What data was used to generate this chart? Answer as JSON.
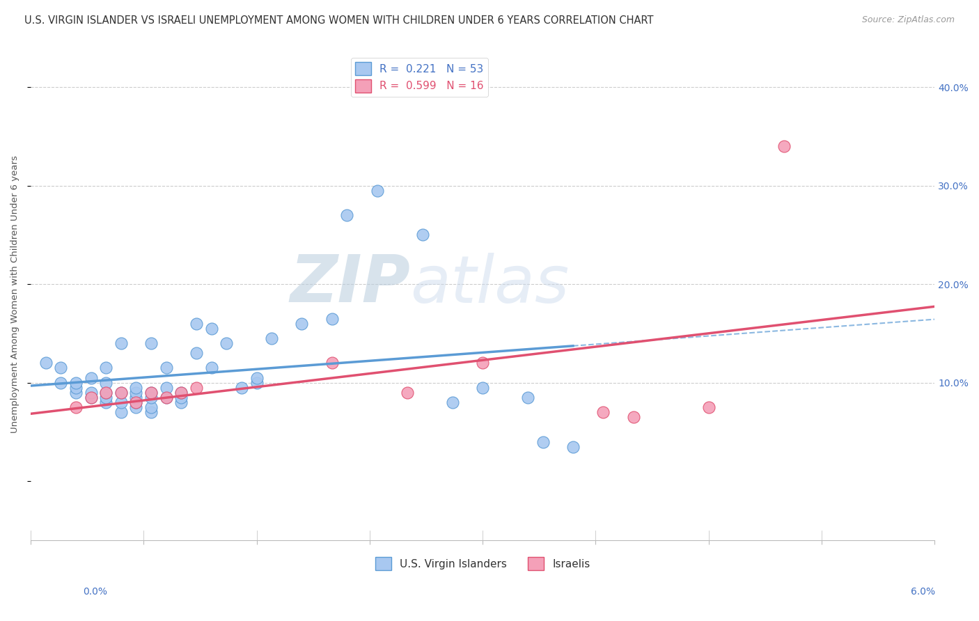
{
  "title": "U.S. VIRGIN ISLANDER VS ISRAELI UNEMPLOYMENT AMONG WOMEN WITH CHILDREN UNDER 6 YEARS CORRELATION CHART",
  "source": "Source: ZipAtlas.com",
  "ylabel": "Unemployment Among Women with Children Under 6 years",
  "y_tick_labels": [
    "10.0%",
    "20.0%",
    "30.0%",
    "40.0%"
  ],
  "y_tick_values": [
    0.1,
    0.2,
    0.3,
    0.4
  ],
  "x_range": [
    0.0,
    0.06
  ],
  "y_range": [
    -0.06,
    0.44
  ],
  "r_vi": 0.221,
  "n_vi": 53,
  "r_is": 0.599,
  "n_is": 16,
  "color_vi": "#A8C8F0",
  "color_vi_line": "#5B9BD5",
  "color_is": "#F4A0B8",
  "color_is_line": "#E05070",
  "color_blue_text": "#4472C4",
  "color_pink_text": "#E05070",
  "legend_label_vi": "U.S. Virgin Islanders",
  "legend_label_is": "Israelis",
  "background_color": "#FFFFFF",
  "grid_color": "#CCCCCC",
  "vi_x": [
    0.001,
    0.002,
    0.002,
    0.003,
    0.003,
    0.003,
    0.004,
    0.004,
    0.004,
    0.005,
    0.005,
    0.005,
    0.005,
    0.005,
    0.006,
    0.006,
    0.006,
    0.006,
    0.007,
    0.007,
    0.007,
    0.007,
    0.007,
    0.008,
    0.008,
    0.008,
    0.008,
    0.008,
    0.009,
    0.009,
    0.009,
    0.01,
    0.01,
    0.01,
    0.011,
    0.011,
    0.012,
    0.012,
    0.013,
    0.014,
    0.015,
    0.015,
    0.016,
    0.018,
    0.02,
    0.021,
    0.023,
    0.026,
    0.028,
    0.03,
    0.033,
    0.034,
    0.036
  ],
  "vi_y": [
    0.12,
    0.1,
    0.115,
    0.09,
    0.095,
    0.1,
    0.085,
    0.09,
    0.105,
    0.08,
    0.085,
    0.09,
    0.1,
    0.115,
    0.07,
    0.08,
    0.09,
    0.14,
    0.075,
    0.08,
    0.085,
    0.09,
    0.095,
    0.07,
    0.075,
    0.085,
    0.09,
    0.14,
    0.085,
    0.095,
    0.115,
    0.08,
    0.085,
    0.09,
    0.13,
    0.16,
    0.115,
    0.155,
    0.14,
    0.095,
    0.1,
    0.105,
    0.145,
    0.16,
    0.165,
    0.27,
    0.295,
    0.25,
    0.08,
    0.095,
    0.085,
    0.04,
    0.035
  ],
  "is_x": [
    0.003,
    0.004,
    0.005,
    0.006,
    0.007,
    0.008,
    0.009,
    0.01,
    0.011,
    0.02,
    0.025,
    0.03,
    0.038,
    0.04,
    0.045,
    0.05
  ],
  "is_y": [
    0.075,
    0.085,
    0.09,
    0.09,
    0.08,
    0.09,
    0.085,
    0.09,
    0.095,
    0.12,
    0.09,
    0.12,
    0.07,
    0.065,
    0.075,
    0.34
  ],
  "watermark_line1": "ZIP",
  "watermark_line2": "atlas",
  "watermark_color": "#C5D8EC",
  "title_fontsize": 10.5,
  "source_fontsize": 9,
  "axis_label_fontsize": 9.5,
  "tick_fontsize": 10,
  "legend_fontsize": 11
}
